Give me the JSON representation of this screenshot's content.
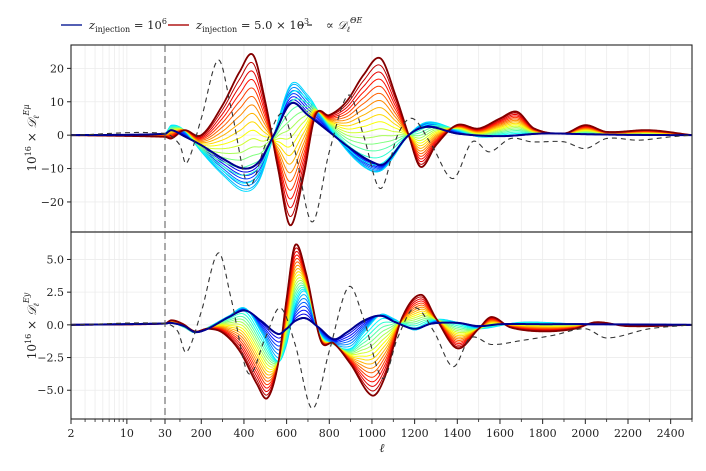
{
  "chart_data": [
    {
      "type": "line",
      "panel": "top",
      "ylabel": "10^16 × D_ℓ^{Eμ}",
      "ylabel_parts": {
        "prefix": "10",
        "exp": "16",
        "times": "×",
        "symbol": "𝒟",
        "sub": "ℓ",
        "sup": "Eμ"
      },
      "ylim": [
        -29,
        27
      ],
      "yticks": [
        20,
        10,
        0,
        -10,
        -20
      ],
      "ytick_labels": [
        "20",
        "10",
        "0",
        "−10",
        "−20"
      ],
      "grid": true,
      "reference_curves": {
        "blue_z1e6": [
          [
            2,
            0
          ],
          [
            30,
            0.4
          ],
          [
            60,
            1.5
          ],
          [
            120,
            -0.3
          ],
          [
            200,
            -3
          ],
          [
            300,
            -7
          ],
          [
            400,
            -10
          ],
          [
            470,
            -8
          ],
          [
            540,
            0
          ],
          [
            620,
            9.5
          ],
          [
            700,
            6
          ],
          [
            800,
            1
          ],
          [
            900,
            -4
          ],
          [
            1000,
            -8
          ],
          [
            1060,
            -8.5
          ],
          [
            1172,
            0
          ],
          [
            1260,
            2.5
          ],
          [
            1400,
            0.5
          ],
          [
            1600,
            -0.3
          ],
          [
            1800,
            0.5
          ],
          [
            2000,
            0.3
          ],
          [
            2200,
            0.1
          ],
          [
            2500,
            0
          ]
        ],
        "cyan_mid": [
          [
            2,
            0
          ],
          [
            30,
            0.5
          ],
          [
            60,
            3
          ],
          [
            120,
            1.5
          ],
          [
            200,
            -5
          ],
          [
            300,
            -12
          ],
          [
            400,
            -17
          ],
          [
            470,
            -14
          ],
          [
            540,
            0
          ],
          [
            620,
            15.5
          ],
          [
            700,
            12
          ],
          [
            760,
            6
          ],
          [
            900,
            -6
          ],
          [
            1000,
            -11
          ],
          [
            1060,
            -10
          ],
          [
            1172,
            0
          ],
          [
            1260,
            4
          ],
          [
            1400,
            1.5
          ],
          [
            1500,
            -0.5
          ],
          [
            1600,
            -0.3
          ],
          [
            1800,
            0.5
          ],
          [
            2000,
            0.3
          ],
          [
            2500,
            0
          ]
        ],
        "red_z5e3": [
          [
            2,
            0
          ],
          [
            30,
            -0.5
          ],
          [
            60,
            -1
          ],
          [
            120,
            1.5
          ],
          [
            200,
            0
          ],
          [
            300,
            9
          ],
          [
            380,
            19
          ],
          [
            443,
            24
          ],
          [
            500,
            10
          ],
          [
            560,
            -10
          ],
          [
            617,
            -27
          ],
          [
            680,
            -12
          ],
          [
            735,
            6
          ],
          [
            800,
            6
          ],
          [
            880,
            10
          ],
          [
            960,
            18
          ],
          [
            1040,
            23
          ],
          [
            1110,
            12
          ],
          [
            1172,
            0
          ],
          [
            1228,
            -9.5
          ],
          [
            1300,
            -3
          ],
          [
            1397,
            3
          ],
          [
            1500,
            2
          ],
          [
            1600,
            5
          ],
          [
            1680,
            7
          ],
          [
            1760,
            2
          ],
          [
            1900,
            0.5
          ],
          [
            2000,
            3
          ],
          [
            2100,
            1
          ],
          [
            2300,
            1.5
          ],
          [
            2500,
            0
          ]
        ]
      },
      "dashed_curve": [
        [
          2,
          0
        ],
        [
          30,
          0.5
        ],
        [
          100,
          -3
        ],
        [
          130,
          -8.5
        ],
        [
          200,
          5
        ],
        [
          280,
          22.5
        ],
        [
          340,
          8
        ],
        [
          420,
          -15
        ],
        [
          500,
          -3
        ],
        [
          580,
          6.5
        ],
        [
          640,
          -5
        ],
        [
          720,
          -26
        ],
        [
          800,
          -5
        ],
        [
          890,
          12
        ],
        [
          960,
          0
        ],
        [
          1040,
          -16
        ],
        [
          1120,
          0
        ],
        [
          1190,
          5
        ],
        [
          1280,
          -3
        ],
        [
          1380,
          -13
        ],
        [
          1470,
          -2
        ],
        [
          1550,
          -5
        ],
        [
          1650,
          -1
        ],
        [
          1750,
          -2
        ],
        [
          1900,
          -2
        ],
        [
          2000,
          -4
        ],
        [
          2100,
          -1
        ],
        [
          2250,
          -1.5
        ],
        [
          2400,
          -0.5
        ],
        [
          2500,
          0
        ]
      ]
    },
    {
      "type": "line",
      "panel": "bottom",
      "ylabel": "10^16 × D_ℓ^{Ey}",
      "ylabel_parts": {
        "prefix": "10",
        "exp": "16",
        "times": "×",
        "symbol": "𝒟",
        "sub": "ℓ",
        "sup": "Ey"
      },
      "ylim": [
        -7.2,
        7.1
      ],
      "yticks": [
        5.0,
        2.5,
        0.0,
        -2.5,
        -5.0
      ],
      "ytick_labels": [
        "5.0",
        "2.5",
        "0.0",
        "−2.5",
        "−5.0"
      ],
      "grid": true,
      "reference_curves": {
        "blue_z1e6": [
          [
            2,
            0
          ],
          [
            30,
            0.1
          ],
          [
            60,
            0.15
          ],
          [
            120,
            -0.1
          ],
          [
            170,
            -0.55
          ],
          [
            230,
            -0.3
          ],
          [
            330,
            0.6
          ],
          [
            405,
            1.1
          ],
          [
            480,
            0.3
          ],
          [
            560,
            -0.7
          ],
          [
            600,
            -0.3
          ],
          [
            640,
            0.3
          ],
          [
            690,
            0.5
          ],
          [
            750,
            -0.2
          ],
          [
            820,
            -1.1
          ],
          [
            880,
            -0.6
          ],
          [
            960,
            0.3
          ],
          [
            1040,
            0.7
          ],
          [
            1110,
            0.2
          ],
          [
            1200,
            -0.3
          ],
          [
            1280,
            0.1
          ],
          [
            1400,
            0.15
          ],
          [
            1500,
            -0.1
          ],
          [
            1600,
            0.05
          ],
          [
            1800,
            0.05
          ],
          [
            2000,
            0.05
          ],
          [
            2500,
            0
          ]
        ],
        "cyan_mid": [
          [
            2,
            0
          ],
          [
            30,
            0.12
          ],
          [
            60,
            0.2
          ],
          [
            120,
            -0.2
          ],
          [
            170,
            -0.6
          ],
          [
            230,
            -0.2
          ],
          [
            330,
            0.7
          ],
          [
            405,
            1.3
          ],
          [
            480,
            -0.5
          ],
          [
            560,
            -2.8
          ],
          [
            600,
            -1.5
          ],
          [
            640,
            1.5
          ],
          [
            690,
            2.5
          ],
          [
            750,
            -0.5
          ],
          [
            820,
            -1.5
          ],
          [
            900,
            -1.8
          ],
          [
            960,
            -0.6
          ],
          [
            1040,
            0.8
          ],
          [
            1100,
            0.5
          ],
          [
            1200,
            -0.4
          ],
          [
            1300,
            0.4
          ],
          [
            1400,
            0.2
          ],
          [
            1500,
            -0.3
          ],
          [
            1700,
            0.2
          ],
          [
            2000,
            0.05
          ],
          [
            2500,
            0
          ]
        ],
        "red_z5e3": [
          [
            2,
            0
          ],
          [
            30,
            0.1
          ],
          [
            60,
            0.35
          ],
          [
            110,
            0.1
          ],
          [
            170,
            -0.5
          ],
          [
            230,
            -0.3
          ],
          [
            300,
            -0.6
          ],
          [
            380,
            -2
          ],
          [
            460,
            -4.5
          ],
          [
            510,
            -5.6
          ],
          [
            560,
            -3
          ],
          [
            600,
            2
          ],
          [
            640,
            6.1
          ],
          [
            690,
            4
          ],
          [
            760,
            -1.2
          ],
          [
            820,
            -1.4
          ],
          [
            900,
            -3
          ],
          [
            1000,
            -5.4
          ],
          [
            1060,
            -4
          ],
          [
            1140,
            0.5
          ],
          [
            1230,
            2.3
          ],
          [
            1300,
            0.5
          ],
          [
            1400,
            -1.8
          ],
          [
            1500,
            -0.3
          ],
          [
            1560,
            0.6
          ],
          [
            1650,
            -0.2
          ],
          [
            1800,
            -0.5
          ],
          [
            1950,
            -0.3
          ],
          [
            2050,
            0.2
          ],
          [
            2200,
            -0.1
          ],
          [
            2500,
            0
          ]
        ]
      },
      "dashed_curve": [
        [
          2,
          0
        ],
        [
          30,
          0.1
        ],
        [
          90,
          -0.5
        ],
        [
          130,
          -2.1
        ],
        [
          200,
          1
        ],
        [
          280,
          5.5
        ],
        [
          340,
          2
        ],
        [
          420,
          -3.7
        ],
        [
          500,
          -1
        ],
        [
          570,
          1.3
        ],
        [
          640,
          -1.5
        ],
        [
          720,
          -6.4
        ],
        [
          800,
          -2
        ],
        [
          890,
          2.9
        ],
        [
          960,
          0.5
        ],
        [
          1050,
          -4.1
        ],
        [
          1120,
          -1
        ],
        [
          1200,
          1.3
        ],
        [
          1290,
          -0.5
        ],
        [
          1380,
          -3.2
        ],
        [
          1460,
          -1
        ],
        [
          1560,
          -1.5
        ],
        [
          1700,
          -1.2
        ],
        [
          1850,
          -0.8
        ],
        [
          2000,
          -0.3
        ],
        [
          2100,
          -1.0
        ],
        [
          2300,
          -0.3
        ],
        [
          2500,
          0
        ]
      ]
    }
  ],
  "x_axis": {
    "label": "ℓ",
    "scale": "log from 2 to 30, linear from 30 to 2500",
    "xlim": [
      2,
      2500
    ],
    "ticks": [
      2,
      10,
      30,
      200,
      400,
      600,
      800,
      1000,
      1200,
      1400,
      1600,
      1800,
      2000,
      2200,
      2400
    ],
    "tick_labels": [
      "2",
      "10",
      "30",
      "200",
      "400",
      "600",
      "800",
      "1000",
      "1200",
      "1400",
      "1600",
      "1800",
      "2000",
      "2200",
      "2400"
    ],
    "vertical_marker_at": 30
  },
  "legend": {
    "placement": "top-center",
    "entries": [
      {
        "label_base": "z",
        "label_sub": "injection",
        "label_rest": " = 10",
        "label_sup": "6",
        "color": "#1a2a9c",
        "style": "solid"
      },
      {
        "label_base": "z",
        "label_sub": "injection",
        "label_rest": " = 5.0 × 10",
        "label_sup": "3",
        "color": "#b01818",
        "style": "solid"
      },
      {
        "label_base": "∝ 𝒟",
        "label_sub": "ℓ",
        "label_rest": "",
        "label_sup": "ΘE",
        "color": "#333333",
        "style": "dashed"
      }
    ]
  },
  "series_family": {
    "count": 24,
    "colormap": "jet",
    "from": "z_injection = 10^6 (dark blue)",
    "to": "z_injection = 5.0 × 10^3 (dark red)"
  }
}
